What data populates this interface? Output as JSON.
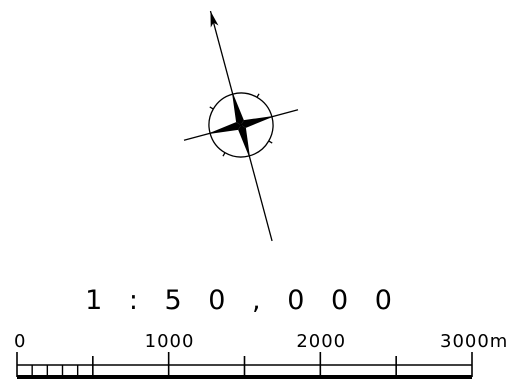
{
  "compass": {
    "icon": "compass-rose-icon",
    "rotation_degrees": -15
  },
  "scale": {
    "ratio_label": "1 : 5 0 , 0 0 0",
    "unit": "m",
    "max_meters": 3000,
    "major_tick_values": [
      0,
      500,
      1000,
      1500,
      2000,
      2500,
      3000
    ],
    "minor_divisions_first_interval": 5,
    "labels": [
      {
        "value": 0,
        "text": "0"
      },
      {
        "value": 1000,
        "text": "1000"
      },
      {
        "value": 2000,
        "text": "2000"
      },
      {
        "value": 3000,
        "text": "3000m"
      }
    ]
  },
  "colors": {
    "ink": "#000000",
    "background": "#ffffff"
  }
}
